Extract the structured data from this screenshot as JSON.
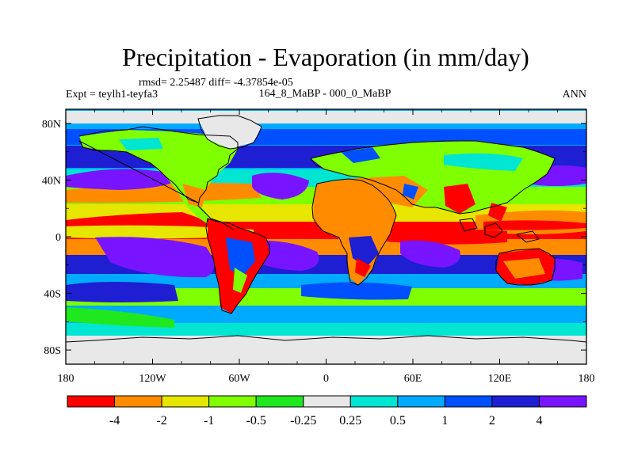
{
  "chart_data": {
    "type": "heatmap",
    "title": "Precipitation - Evaporation (in mm/day)",
    "stats_text": "rmsd= 2.25487 diff= -4.37854e-05",
    "left_label": "Expt = teylh1-teyfa3",
    "center_label": "164_8_MaBP - 000_0_MaBP",
    "right_label": "ANN",
    "xlabel": "",
    "ylabel": "",
    "xlim": [
      -180,
      180
    ],
    "ylim": [
      -90,
      90
    ],
    "x_ticks": [
      {
        "value": -180,
        "label": "180"
      },
      {
        "value": -120,
        "label": "120W"
      },
      {
        "value": -60,
        "label": "60W"
      },
      {
        "value": 0,
        "label": "0"
      },
      {
        "value": 60,
        "label": "60E"
      },
      {
        "value": 120,
        "label": "120E"
      },
      {
        "value": 180,
        "label": "180"
      }
    ],
    "y_ticks": [
      {
        "value": 80,
        "label": "80N"
      },
      {
        "value": 40,
        "label": "40N"
      },
      {
        "value": 0,
        "label": "0"
      },
      {
        "value": -40,
        "label": "40S"
      },
      {
        "value": -80,
        "label": "80S"
      }
    ],
    "colorbar": {
      "colors": [
        "#ff0000",
        "#ff8c00",
        "#e6e600",
        "#7fff00",
        "#1fe81f",
        "#e8e8e8",
        "#00e6d2",
        "#00aaff",
        "#0050ff",
        "#1e1ed2",
        "#7814ff"
      ],
      "levels": [
        "-4",
        "-2",
        "-1",
        "-0.5",
        "-0.25",
        "0.25",
        "0.5",
        "1",
        "2",
        "4"
      ]
    },
    "grid": false,
    "legend": "bottom colorbar"
  }
}
